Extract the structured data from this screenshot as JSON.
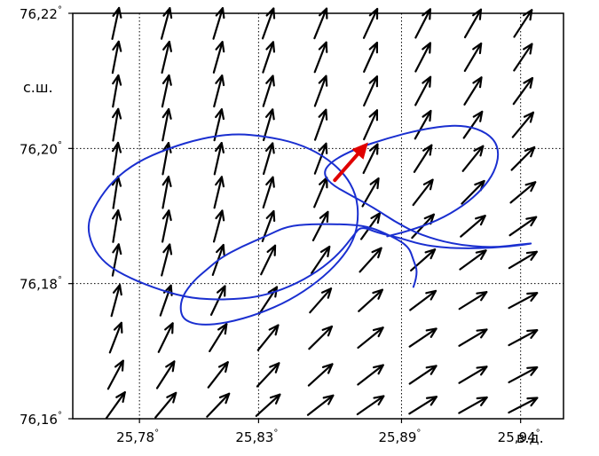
{
  "chart_data": {
    "type": "vector-field-map",
    "title": "",
    "xlabel": "в.д.",
    "ylabel": "с.ш.",
    "xlim": [
      25.752,
      25.958
    ],
    "ylim": [
      76.16,
      76.22
    ],
    "degree_symbol": "°",
    "x_ticks": [
      {
        "value": 25.78,
        "label": "25,78"
      },
      {
        "value": 25.83,
        "label": "25,83"
      },
      {
        "value": 25.89,
        "label": "25,89"
      },
      {
        "value": 25.94,
        "label": "25,94"
      }
    ],
    "y_ticks": [
      {
        "value": 76.16,
        "label": "76,16"
      },
      {
        "value": 76.18,
        "label": "76,18"
      },
      {
        "value": 76.2,
        "label": "76,20"
      },
      {
        "value": 76.22,
        "label": "76,22"
      }
    ],
    "grid": true,
    "colors": {
      "field_arrows": "#000000",
      "track": "#1a2fd0",
      "highlight_arrow": "#e00000"
    },
    "field": {
      "lon": [
        25.77,
        25.791,
        25.813,
        25.834,
        25.856,
        25.877,
        25.899,
        25.92,
        25.941
      ],
      "lat": [
        76.2185,
        76.2135,
        76.2085,
        76.2035,
        76.1985,
        76.1935,
        76.1885,
        76.1835,
        76.1775,
        76.172,
        76.1665,
        76.162
      ],
      "rows": [
        [
          [
            0.21,
            0.97
          ],
          [
            0.26,
            0.96
          ],
          [
            0.29,
            0.96
          ],
          [
            0.34,
            0.94
          ],
          [
            0.38,
            0.93
          ],
          [
            0.42,
            0.91
          ],
          [
            0.46,
            0.89
          ],
          [
            0.5,
            0.87
          ],
          [
            0.55,
            0.84
          ]
        ],
        [
          [
            0.19,
            0.98
          ],
          [
            0.23,
            0.97
          ],
          [
            0.27,
            0.96
          ],
          [
            0.32,
            0.95
          ],
          [
            0.36,
            0.93
          ],
          [
            0.41,
            0.91
          ],
          [
            0.46,
            0.89
          ],
          [
            0.51,
            0.86
          ],
          [
            0.56,
            0.83
          ]
        ],
        [
          [
            0.17,
            0.98
          ],
          [
            0.21,
            0.98
          ],
          [
            0.25,
            0.97
          ],
          [
            0.3,
            0.95
          ],
          [
            0.35,
            0.94
          ],
          [
            0.41,
            0.91
          ],
          [
            0.47,
            0.88
          ],
          [
            0.53,
            0.85
          ],
          [
            0.59,
            0.81
          ]
        ],
        [
          [
            0.16,
            0.99
          ],
          [
            0.19,
            0.98
          ],
          [
            0.23,
            0.97
          ],
          [
            0.28,
            0.96
          ],
          [
            0.34,
            0.94
          ],
          [
            0.41,
            0.91
          ],
          [
            0.49,
            0.87
          ],
          [
            0.57,
            0.82
          ],
          [
            0.64,
            0.77
          ]
        ],
        [
          [
            0.15,
            0.99
          ],
          [
            0.18,
            0.98
          ],
          [
            0.22,
            0.98
          ],
          [
            0.28,
            0.96
          ],
          [
            0.35,
            0.94
          ],
          [
            0.44,
            0.9
          ],
          [
            0.54,
            0.84
          ],
          [
            0.63,
            0.78
          ],
          [
            0.71,
            0.71
          ]
        ],
        [
          [
            0.15,
            0.99
          ],
          [
            0.18,
            0.98
          ],
          [
            0.23,
            0.97
          ],
          [
            0.3,
            0.95
          ],
          [
            0.39,
            0.92
          ],
          [
            0.5,
            0.87
          ],
          [
            0.61,
            0.79
          ],
          [
            0.7,
            0.71
          ],
          [
            0.77,
            0.64
          ]
        ],
        [
          [
            0.16,
            0.99
          ],
          [
            0.2,
            0.98
          ],
          [
            0.26,
            0.97
          ],
          [
            0.35,
            0.94
          ],
          [
            0.46,
            0.89
          ],
          [
            0.58,
            0.81
          ],
          [
            0.68,
            0.73
          ],
          [
            0.76,
            0.65
          ],
          [
            0.82,
            0.57
          ]
        ],
        [
          [
            0.19,
            0.98
          ],
          [
            0.25,
            0.97
          ],
          [
            0.33,
            0.94
          ],
          [
            0.44,
            0.9
          ],
          [
            0.56,
            0.83
          ],
          [
            0.67,
            0.74
          ],
          [
            0.75,
            0.66
          ],
          [
            0.81,
            0.59
          ],
          [
            0.86,
            0.51
          ]
        ],
        [
          [
            0.26,
            0.97
          ],
          [
            0.33,
            0.94
          ],
          [
            0.43,
            0.9
          ],
          [
            0.55,
            0.84
          ],
          [
            0.66,
            0.75
          ],
          [
            0.74,
            0.67
          ],
          [
            0.8,
            0.6
          ],
          [
            0.85,
            0.53
          ],
          [
            0.88,
            0.47
          ]
        ],
        [
          [
            0.36,
            0.93
          ],
          [
            0.44,
            0.9
          ],
          [
            0.53,
            0.85
          ],
          [
            0.63,
            0.78
          ],
          [
            0.71,
            0.7
          ],
          [
            0.78,
            0.63
          ],
          [
            0.83,
            0.56
          ],
          [
            0.86,
            0.51
          ],
          [
            0.88,
            0.47
          ]
        ],
        [
          [
            0.47,
            0.88
          ],
          [
            0.54,
            0.84
          ],
          [
            0.61,
            0.79
          ],
          [
            0.68,
            0.73
          ],
          [
            0.74,
            0.67
          ],
          [
            0.79,
            0.61
          ],
          [
            0.83,
            0.56
          ],
          [
            0.86,
            0.51
          ],
          [
            0.88,
            0.47
          ]
        ],
        [
          [
            0.58,
            0.81
          ],
          [
            0.64,
            0.77
          ],
          [
            0.69,
            0.72
          ],
          [
            0.74,
            0.67
          ],
          [
            0.79,
            0.61
          ],
          [
            0.82,
            0.57
          ],
          [
            0.85,
            0.53
          ],
          [
            0.87,
            0.49
          ],
          [
            0.89,
            0.46
          ]
        ]
      ]
    },
    "track": [
      [
        25.895,
        76.1795
      ],
      [
        25.897,
        76.1815
      ],
      [
        25.895,
        76.1835
      ],
      [
        25.893,
        76.1855
      ],
      [
        25.886,
        76.187
      ],
      [
        25.876,
        76.1885
      ],
      [
        25.865,
        76.1888
      ],
      [
        25.852,
        76.1888
      ],
      [
        25.842,
        76.1885
      ],
      [
        25.833,
        76.187
      ],
      [
        25.823,
        76.1855
      ],
      [
        25.814,
        76.1838
      ],
      [
        25.808,
        76.182
      ],
      [
        25.803,
        76.1805
      ],
      [
        25.798,
        76.1782
      ],
      [
        25.797,
        76.176
      ],
      [
        25.799,
        76.1745
      ],
      [
        25.806,
        76.1738
      ],
      [
        25.817,
        76.1742
      ],
      [
        25.83,
        76.1755
      ],
      [
        25.843,
        76.1775
      ],
      [
        25.855,
        76.1803
      ],
      [
        25.864,
        76.1833
      ],
      [
        25.87,
        76.1864
      ],
      [
        25.872,
        76.1897
      ],
      [
        25.871,
        76.1932
      ],
      [
        25.866,
        76.1963
      ],
      [
        25.857,
        76.199
      ],
      [
        25.846,
        76.2008
      ],
      [
        25.833,
        76.2018
      ],
      [
        25.82,
        76.2022
      ],
      [
        25.806,
        76.2015
      ],
      [
        25.792,
        76.2
      ],
      [
        25.779,
        76.198
      ],
      [
        25.769,
        76.1953
      ],
      [
        25.762,
        76.192
      ],
      [
        25.758,
        76.1888
      ],
      [
        25.76,
        76.1855
      ],
      [
        25.766,
        76.1828
      ],
      [
        25.776,
        76.1808
      ],
      [
        25.789,
        76.179
      ],
      [
        25.802,
        76.1778
      ],
      [
        25.816,
        76.1776
      ],
      [
        25.83,
        76.178
      ],
      [
        25.843,
        76.1795
      ],
      [
        25.855,
        76.1818
      ],
      [
        25.864,
        76.1845
      ],
      [
        25.87,
        76.1872
      ],
      [
        25.873,
        76.1885
      ],
      [
        25.88,
        76.1875
      ],
      [
        25.889,
        76.1868
      ],
      [
        25.898,
        76.1858
      ],
      [
        25.908,
        76.1853
      ],
      [
        25.918,
        76.1852
      ],
      [
        25.928,
        76.1853
      ],
      [
        25.938,
        76.1856
      ],
      [
        25.946,
        76.186
      ],
      [
        25.94,
        76.1858
      ],
      [
        25.928,
        76.1853
      ],
      [
        25.912,
        76.1858
      ],
      [
        25.898,
        76.1872
      ],
      [
        25.888,
        76.189
      ],
      [
        25.878,
        76.1913
      ],
      [
        25.869,
        76.193
      ],
      [
        25.86,
        76.1948
      ],
      [
        25.857,
        76.1965
      ],
      [
        25.861,
        76.1982
      ],
      [
        25.871,
        76.2
      ],
      [
        25.884,
        76.2015
      ],
      [
        25.898,
        76.2028
      ],
      [
        25.912,
        76.2035
      ],
      [
        25.922,
        76.203
      ],
      [
        25.929,
        76.2014
      ],
      [
        25.931,
        76.1992
      ],
      [
        25.929,
        76.1965
      ],
      [
        25.924,
        76.194
      ],
      [
        25.916,
        76.1915
      ],
      [
        25.905,
        76.1893
      ],
      [
        25.893,
        76.1878
      ],
      [
        25.884,
        76.187
      ]
    ],
    "highlight_arrow": {
      "from": [
        25.862,
        76.1953
      ],
      "to": [
        25.876,
        76.2009
      ]
    }
  }
}
